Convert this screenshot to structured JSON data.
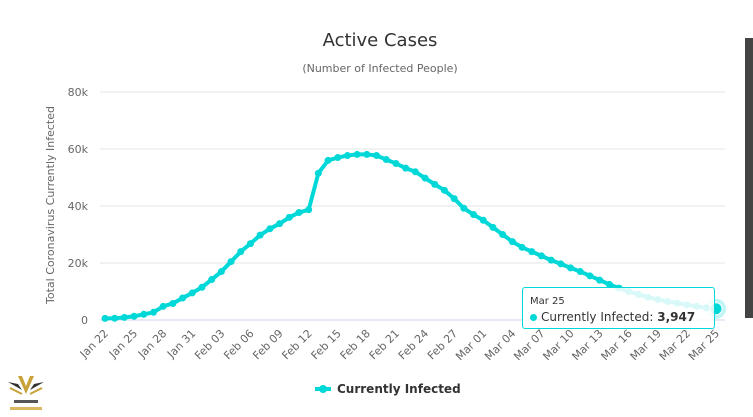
{
  "colors": {
    "series": "#00d8d8",
    "grid": "#e6e6e6",
    "axis": "#ccd6eb"
  },
  "logo": {
    "text": "ARAB DEFENSE FORUM"
  },
  "tooltip": {
    "date": "Mar 25",
    "series": "Currently Infected:",
    "value": "3,947"
  },
  "chart_data": {
    "type": "line",
    "title": "Active Cases",
    "subtitle": "(Number of Infected People)",
    "ylabel": "Total Coronavirus Currently Infected",
    "xlabel": "",
    "ylim": [
      0,
      80000
    ],
    "yticks": [
      "0",
      "20k",
      "40k",
      "60k",
      "80k"
    ],
    "ytick_values": [
      0,
      20000,
      40000,
      60000,
      80000
    ],
    "grid": true,
    "legend": {
      "position": "bottom",
      "entries": [
        "Currently Infected"
      ]
    },
    "xtick_labels": [
      "Jan 22",
      "Jan 25",
      "Jan 28",
      "Jan 31",
      "Feb 03",
      "Feb 06",
      "Feb 09",
      "Feb 12",
      "Feb 15",
      "Feb 18",
      "Feb 21",
      "Feb 24",
      "Feb 27",
      "Mar 01",
      "Mar 04",
      "Mar 07",
      "Mar 10",
      "Mar 13",
      "Mar 16",
      "Mar 19",
      "Mar 22",
      "Mar 25"
    ],
    "series": [
      {
        "name": "Currently Infected",
        "values": [
          550,
          600,
          900,
          1300,
          2000,
          2700,
          4800,
          5800,
          7700,
          9500,
          11500,
          14200,
          17000,
          20500,
          24000,
          26800,
          29800,
          32000,
          33800,
          36000,
          37700,
          38700,
          51500,
          56000,
          57000,
          57700,
          58100,
          58100,
          57700,
          56300,
          54900,
          53300,
          52000,
          49800,
          47600,
          45500,
          42600,
          39200,
          37000,
          35000,
          32500,
          30000,
          27500,
          25500,
          24000,
          22500,
          21000,
          19700,
          18300,
          17000,
          15500,
          14000,
          12500,
          11200,
          10000,
          9000,
          8000,
          7200,
          6500,
          5900,
          5300,
          4800,
          4300,
          3947
        ]
      }
    ]
  }
}
